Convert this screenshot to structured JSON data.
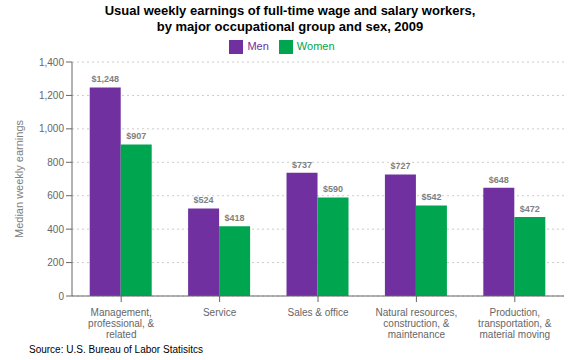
{
  "chart_data": {
    "type": "bar",
    "title": "Usual weekly earnings of full-time wage and salary workers,\nby major occupational group and sex, 2009",
    "ylabel": "Median weekly earnings",
    "annotations": [
      "Source: U.S. Bureau of Labor Statisitcs"
    ],
    "categories": [
      "Management,\nprofessional, &\nrelated",
      "Service",
      "Sales & office",
      "Natural resources,\nconstruction, &\nmaintenance",
      "Production,\ntransportation, &\nmaterial moving"
    ],
    "series": [
      {
        "name": "Men",
        "color": "#7030A0",
        "values": [
          1248,
          524,
          737,
          727,
          648
        ],
        "value_labels": [
          "$1,248",
          "$524",
          "$737",
          "$727",
          "$648"
        ]
      },
      {
        "name": "Women",
        "color": "#00A550",
        "values": [
          907,
          418,
          590,
          542,
          472
        ],
        "value_labels": [
          "$907",
          "$418",
          "$590",
          "$542",
          "$472"
        ]
      }
    ],
    "ylim": [
      0,
      1400
    ],
    "yticks": [
      0,
      200,
      400,
      600,
      {
        "value": 800,
        "label": "800"
      },
      {
        "value": 1000,
        "label": "1,000"
      },
      {
        "value": 1200,
        "label": "1,200"
      },
      {
        "value": 1400,
        "label": "1,400"
      }
    ],
    "grid": true,
    "legend": "top",
    "data_labels": true
  }
}
